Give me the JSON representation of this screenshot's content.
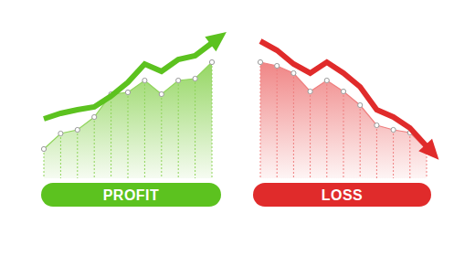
{
  "chart_data": [
    {
      "type": "area",
      "title": "PROFIT",
      "categories": [
        null,
        null,
        null,
        null,
        null,
        null,
        null,
        null,
        null,
        null,
        null
      ],
      "ylim": [
        0,
        160
      ],
      "tick_labels": false,
      "series": [
        {
          "type": "area",
          "color": "#8fd45a",
          "marker": "circle",
          "values": [
            32,
            49,
            53,
            67,
            92,
            94,
            107,
            92,
            107,
            109,
            127
          ]
        },
        {
          "type": "line",
          "color": "#5cc21f",
          "marker": "arrow",
          "values": [
            65,
            71,
            75,
            78,
            90,
            105,
            125,
            117,
            130,
            134,
            148
          ]
        }
      ]
    },
    {
      "type": "area",
      "title": "LOSS",
      "categories": [
        null,
        null,
        null,
        null,
        null,
        null,
        null,
        null,
        null,
        null,
        null
      ],
      "ylim": [
        0,
        160
      ],
      "tick_labels": false,
      "series": [
        {
          "type": "area",
          "color": "#ef7f7f",
          "marker": "circle",
          "values": [
            127,
            123,
            115,
            95,
            107,
            95,
            80,
            58,
            53,
            50,
            32
          ]
        },
        {
          "type": "line",
          "color": "#e02b2b",
          "marker": "arrow",
          "values": [
            150,
            140,
            125,
            115,
            127,
            115,
            100,
            75,
            67,
            55,
            35
          ]
        }
      ]
    }
  ]
}
